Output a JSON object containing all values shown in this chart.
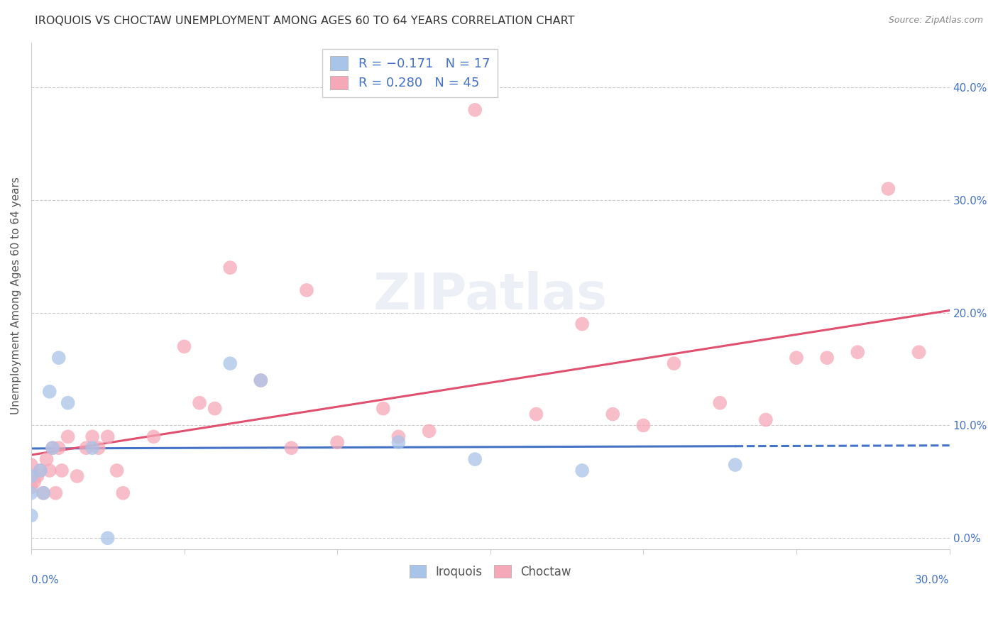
{
  "title": "IROQUOIS VS CHOCTAW UNEMPLOYMENT AMONG AGES 60 TO 64 YEARS CORRELATION CHART",
  "source": "Source: ZipAtlas.com",
  "ylabel": "Unemployment Among Ages 60 to 64 years",
  "ylabel_right_ticks": [
    "0.0%",
    "10.0%",
    "20.0%",
    "30.0%",
    "40.0%"
  ],
  "ylabel_right_vals": [
    0.0,
    0.1,
    0.2,
    0.3,
    0.4
  ],
  "xlim": [
    0.0,
    0.3
  ],
  "ylim": [
    -0.01,
    0.44
  ],
  "iroquois_color": "#a8c4e8",
  "choctaw_color": "#f5a8b8",
  "iroquois_line_color": "#4472c4",
  "choctaw_line_color": "#e05070",
  "watermark": "ZIPatlas",
  "iroquois_x": [
    0.0,
    0.0,
    0.0,
    0.003,
    0.004,
    0.006,
    0.007,
    0.009,
    0.012,
    0.02,
    0.025,
    0.065,
    0.075,
    0.12,
    0.145,
    0.18,
    0.23
  ],
  "iroquois_y": [
    0.055,
    0.04,
    0.02,
    0.06,
    0.04,
    0.13,
    0.08,
    0.16,
    0.12,
    0.08,
    0.0,
    0.155,
    0.14,
    0.085,
    0.07,
    0.06,
    0.065
  ],
  "choctaw_x": [
    0.0,
    0.0,
    0.001,
    0.002,
    0.003,
    0.004,
    0.005,
    0.006,
    0.007,
    0.008,
    0.009,
    0.01,
    0.012,
    0.015,
    0.018,
    0.02,
    0.022,
    0.025,
    0.028,
    0.03,
    0.04,
    0.05,
    0.055,
    0.06,
    0.065,
    0.075,
    0.085,
    0.09,
    0.1,
    0.115,
    0.12,
    0.13,
    0.145,
    0.165,
    0.18,
    0.19,
    0.2,
    0.21,
    0.225,
    0.24,
    0.25,
    0.26,
    0.27,
    0.28,
    0.29
  ],
  "choctaw_y": [
    0.065,
    0.045,
    0.05,
    0.055,
    0.06,
    0.04,
    0.07,
    0.06,
    0.08,
    0.04,
    0.08,
    0.06,
    0.09,
    0.055,
    0.08,
    0.09,
    0.08,
    0.09,
    0.06,
    0.04,
    0.09,
    0.17,
    0.12,
    0.115,
    0.24,
    0.14,
    0.08,
    0.22,
    0.085,
    0.115,
    0.09,
    0.095,
    0.38,
    0.11,
    0.19,
    0.11,
    0.1,
    0.155,
    0.12,
    0.105,
    0.16,
    0.16,
    0.165,
    0.31,
    0.165
  ]
}
